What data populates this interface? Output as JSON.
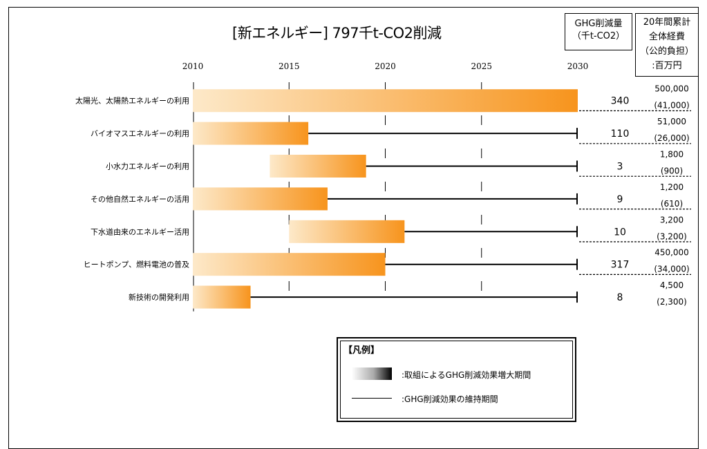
{
  "header": {
    "title": "[新エネルギー] 797千t-CO2削減",
    "ghg_col_lines": [
      "GHG削減量",
      "（千t-CO2）"
    ],
    "cost_col_lines": [
      "20年間累計",
      "全体経費",
      "（公的負担）",
      ":百万円"
    ]
  },
  "legend": {
    "title": "【凡例】",
    "gradient_label": ":取組によるGHG削減効果増大期間",
    "line_label": ":GHG削減効果の維持期間"
  },
  "colors": {
    "bar_start": "#fde9c9",
    "bar_end": "#f7941d",
    "line": "#000000"
  },
  "chart_data": {
    "type": "bar",
    "title": "[新エネルギー] 797千t-CO2削減",
    "xlim": [
      2010,
      2030
    ],
    "xticks": [
      2010,
      2015,
      2020,
      2025,
      2030
    ],
    "categories": [
      "太陽光、太陽熱エネルギーの利用",
      "バイオマスエネルギーの利用",
      "小水力エネルギーの利用",
      "その他自然エネルギーの活用",
      "下水道由来のエネルギー活用",
      "ヒートポンプ、燃料電池の普及",
      "新技術の開発利用"
    ],
    "series": [
      {
        "name": "取組によるGHG削減効果増大期間",
        "start": [
          2010,
          2010,
          2014,
          2010,
          2015,
          2010,
          2010
        ],
        "end": [
          2030,
          2016,
          2019,
          2017,
          2021,
          2020,
          2013
        ]
      },
      {
        "name": "GHG削減効果の維持期間",
        "start": [
          2030,
          2016,
          2019,
          2017,
          2021,
          2020,
          2013
        ],
        "end": [
          2030,
          2030,
          2030,
          2030,
          2030,
          2030,
          2030
        ]
      }
    ],
    "ghg_reduction": [
      "340",
      "110",
      "3",
      "9",
      "10",
      "317",
      "8"
    ],
    "total_cost": [
      "500,000",
      "51,000",
      "1,800",
      "1,200",
      "3,200",
      "450,000",
      "4,500"
    ],
    "public_cost": [
      "(41,000)",
      "(26,000)",
      "(900)",
      "(610)",
      "(3,200)",
      "(34,000)",
      "(2,300)"
    ]
  }
}
